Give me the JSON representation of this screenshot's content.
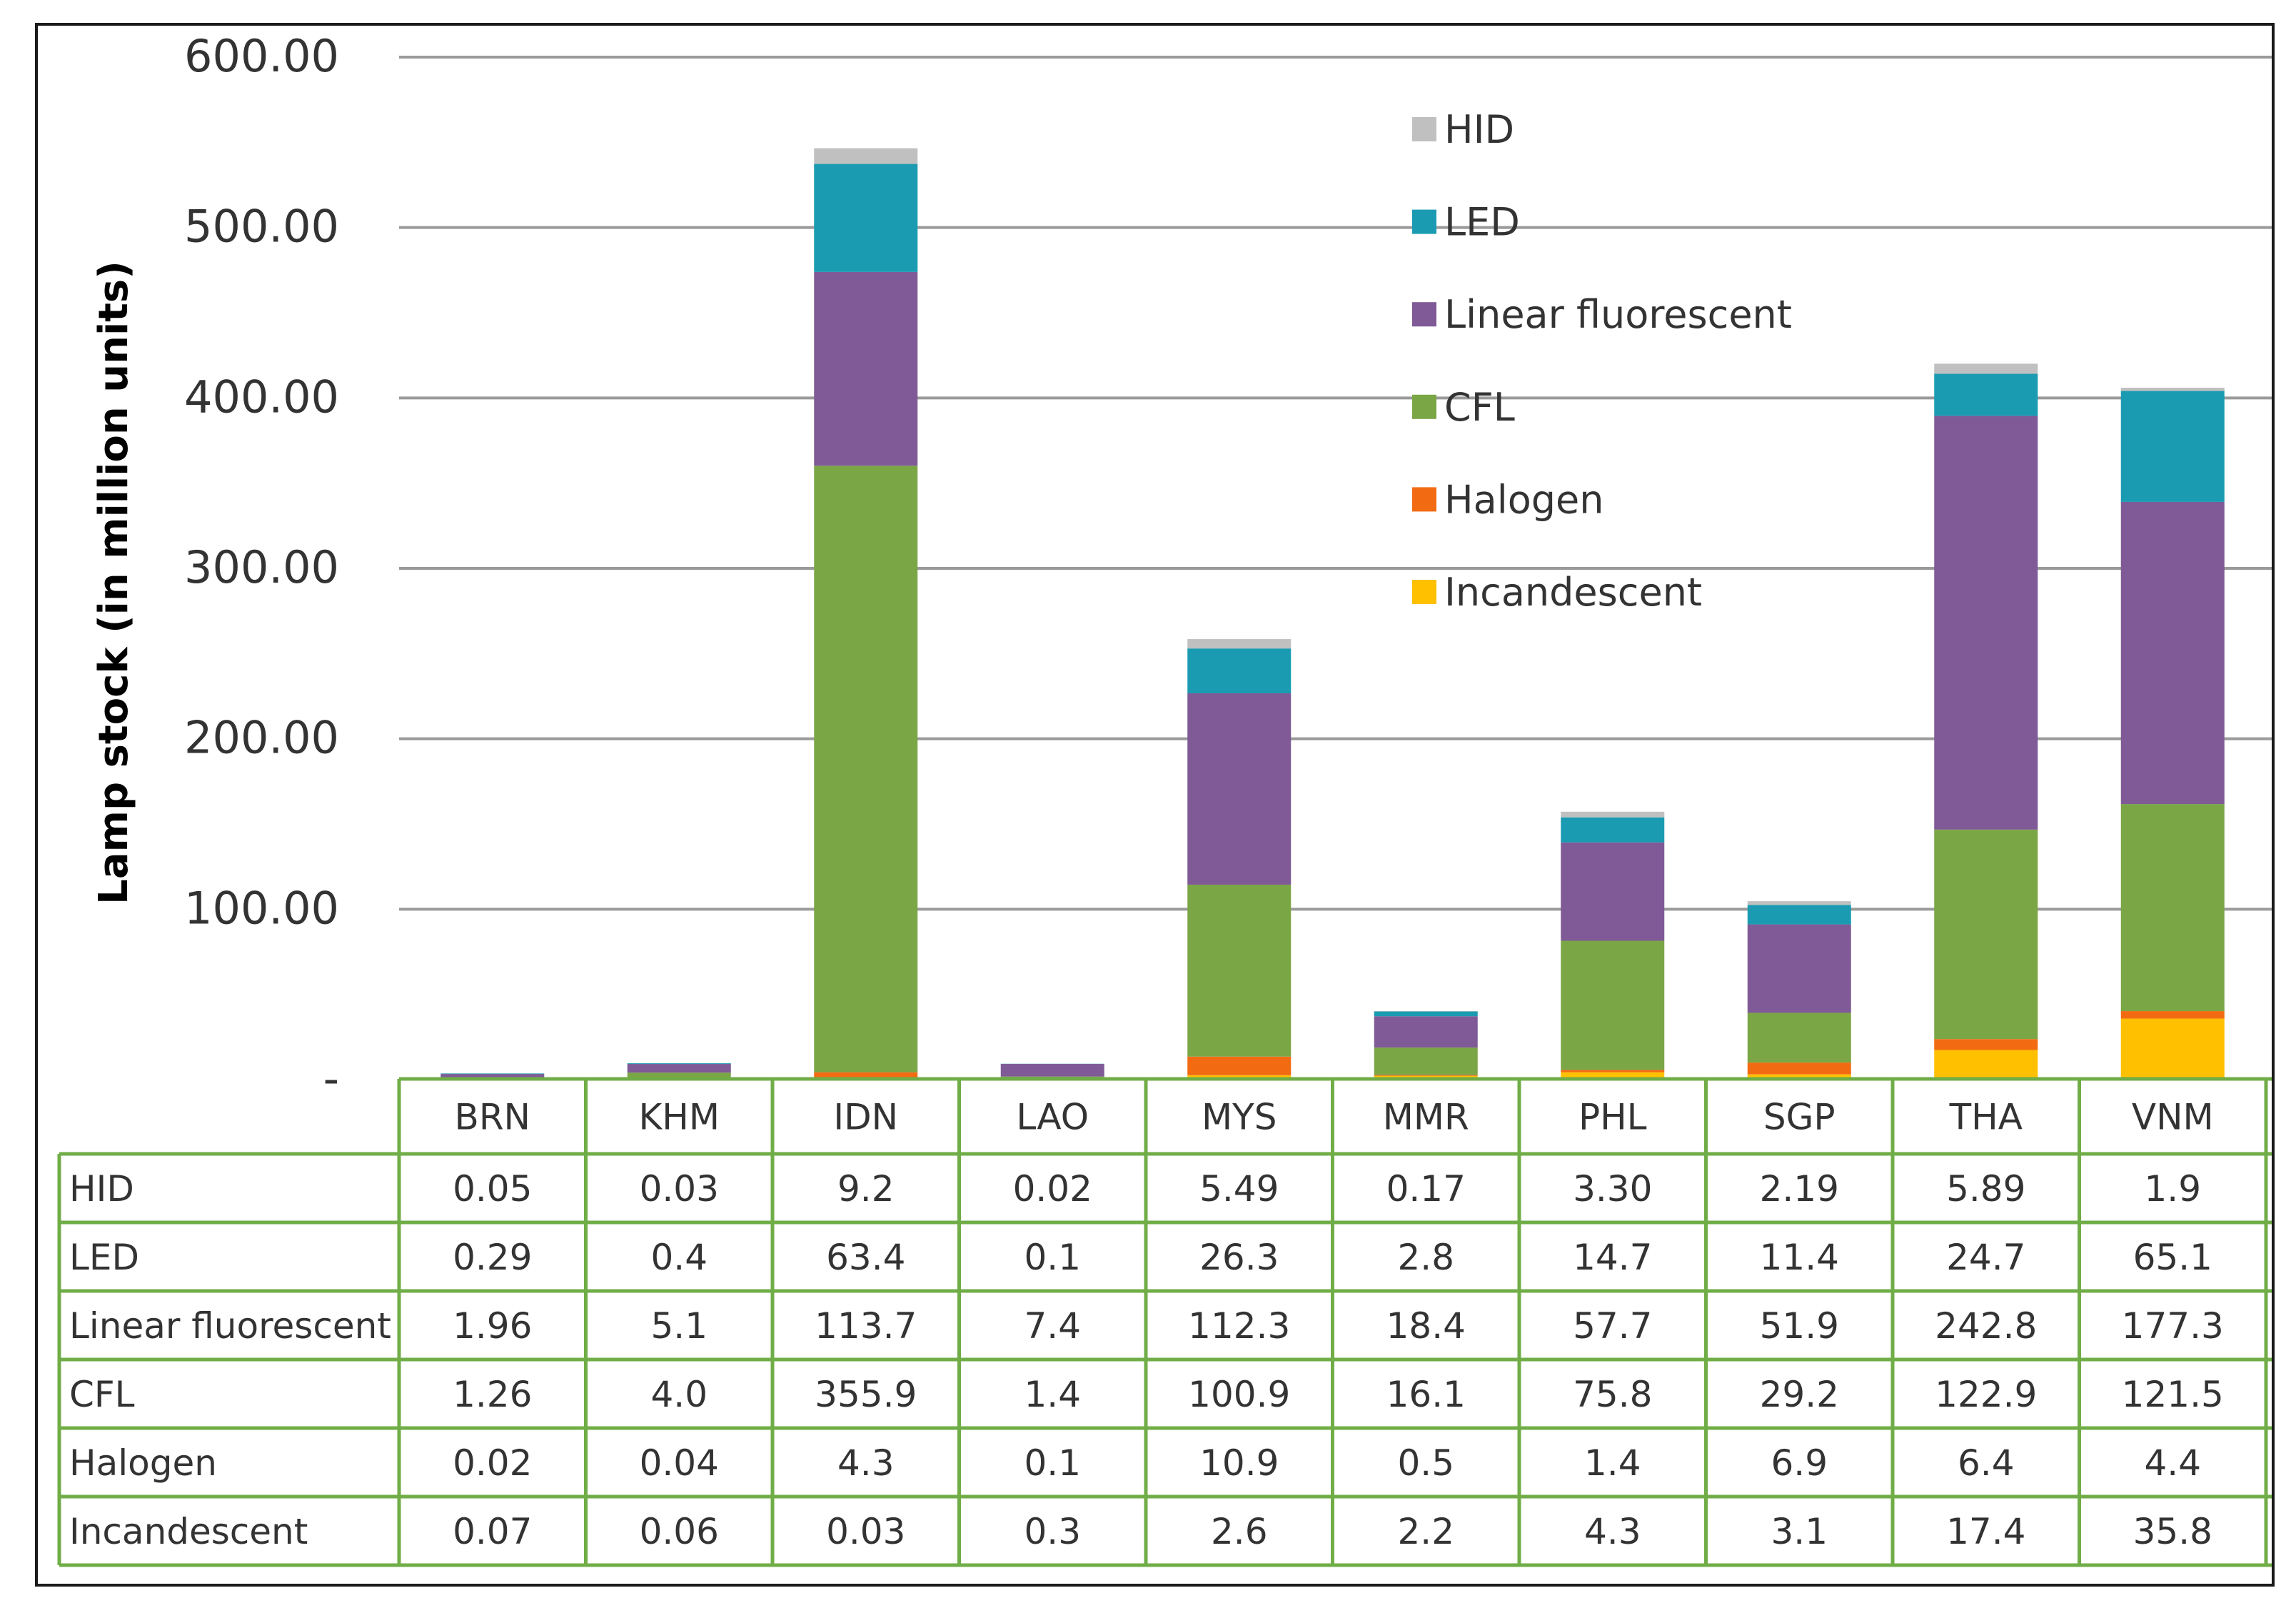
{
  "chart_data": {
    "type": "bar",
    "stacked": true,
    "title": "",
    "xlabel": "",
    "ylabel": "Lamp stock (in million units)",
    "ylim": [
      0,
      600
    ],
    "yticks": [
      {
        "value": 0,
        "label": "-"
      },
      {
        "value": 100,
        "label": "100.00"
      },
      {
        "value": 200,
        "label": "200.00"
      },
      {
        "value": 300,
        "label": "300.00"
      },
      {
        "value": 400,
        "label": "400.00"
      },
      {
        "value": 500,
        "label": "500.00"
      },
      {
        "value": 600,
        "label": "600.00"
      }
    ],
    "grid": true,
    "legend_position": "top-right",
    "categories": [
      "BRN",
      "KHM",
      "IDN",
      "LAO",
      "MYS",
      "MMR",
      "PHL",
      "SGP",
      "THA",
      "VNM"
    ],
    "series": [
      {
        "name": "HID",
        "color": "#c0c0c0",
        "values": [
          0.05,
          0.03,
          9.2,
          0.02,
          5.49,
          0.17,
          3.3,
          2.19,
          5.89,
          1.9
        ],
        "labels": [
          "0.05",
          "0.03",
          "9.2",
          "0.02",
          "5.49",
          "0.17",
          "3.30",
          "2.19",
          "5.89",
          "1.9"
        ]
      },
      {
        "name": "LED",
        "color": "#1a9bb2",
        "values": [
          0.29,
          0.4,
          63.4,
          0.1,
          26.3,
          2.8,
          14.7,
          11.4,
          24.7,
          65.1
        ],
        "labels": [
          "0.29",
          "0.4",
          "63.4",
          "0.1",
          "26.3",
          "2.8",
          "14.7",
          "11.4",
          "24.7",
          "65.1"
        ]
      },
      {
        "name": "Linear fluorescent",
        "color": "#7f5a96",
        "values": [
          1.96,
          5.1,
          113.7,
          7.4,
          112.3,
          18.4,
          57.7,
          51.9,
          242.8,
          177.3
        ],
        "labels": [
          "1.96",
          "5.1",
          "113.7",
          "7.4",
          "112.3",
          "18.4",
          "57.7",
          "51.9",
          "242.8",
          "177.3"
        ]
      },
      {
        "name": "CFL",
        "color": "#7aa646",
        "values": [
          1.26,
          4.0,
          355.9,
          1.4,
          100.9,
          16.1,
          75.8,
          29.2,
          122.9,
          121.5
        ],
        "labels": [
          "1.26",
          "4.0",
          "355.9",
          "1.4",
          "100.9",
          "16.1",
          "75.8",
          "29.2",
          "122.9",
          "121.5"
        ]
      },
      {
        "name": "Halogen",
        "color": "#f26b13",
        "values": [
          0.02,
          0.04,
          4.3,
          0.1,
          10.9,
          0.5,
          1.4,
          6.9,
          6.4,
          4.4
        ],
        "labels": [
          "0.02",
          "0.04",
          "4.3",
          "0.1",
          "10.9",
          "0.5",
          "1.4",
          "6.9",
          "6.4",
          "4.4"
        ]
      },
      {
        "name": "Incandescent",
        "color": "#ffc000",
        "values": [
          0.07,
          0.06,
          0.03,
          0.3,
          2.6,
          2.2,
          4.3,
          3.1,
          17.4,
          35.8
        ],
        "labels": [
          "0.07",
          "0.06",
          "0.03",
          "0.3",
          "2.6",
          "2.2",
          "4.3",
          "3.1",
          "17.4",
          "35.8"
        ]
      }
    ],
    "legend_order": [
      "HID",
      "LED",
      "Linear fluorescent",
      "CFL",
      "Halogen",
      "Incandescent"
    ],
    "table_row_order": [
      "HID",
      "LED",
      "Linear fluorescent",
      "CFL",
      "Halogen",
      "Incandescent"
    ],
    "colors": {
      "grid": "#9a9a9a",
      "table_border": "#70ad47",
      "text": "#333333"
    }
  }
}
